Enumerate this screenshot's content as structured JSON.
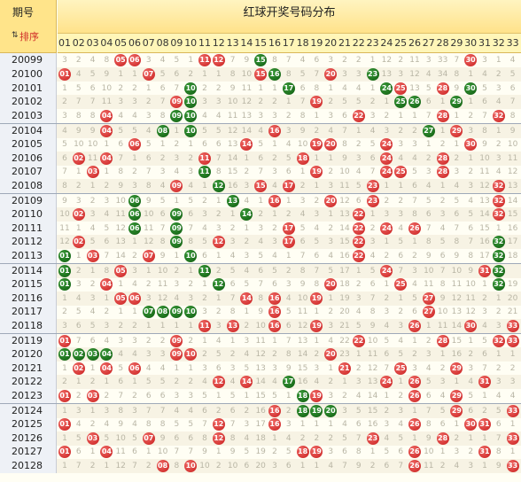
{
  "header": {
    "period_label": "期号",
    "sort_label": "排序",
    "sort_icon": "⇅",
    "title": "红球开奖号码分布"
  },
  "numbers": [
    "01",
    "02",
    "03",
    "04",
    "05",
    "06",
    "07",
    "08",
    "09",
    "10",
    "11",
    "12",
    "13",
    "14",
    "15",
    "16",
    "17",
    "18",
    "19",
    "20",
    "21",
    "22",
    "23",
    "24",
    "25",
    "26",
    "27",
    "28",
    "29",
    "30",
    "31",
    "32",
    "33"
  ],
  "colors": {
    "red_ball": "#c81e1e",
    "green_ball": "#0d5a0d",
    "header": "#ffe28a"
  },
  "rows": [
    {
      "period": "20099",
      "balls": [
        5,
        6,
        11,
        12,
        15,
        30
      ],
      "green": [
        15
      ],
      "cells": [
        "3",
        "2",
        "4",
        "8",
        "",
        "",
        "3",
        "4",
        "5",
        "1",
        "",
        "",
        "7",
        "9",
        "",
        "8",
        "7",
        "4",
        "6",
        "3",
        "2",
        "2",
        "1",
        "12",
        "2",
        "11",
        "3",
        "33",
        "7",
        "",
        "3",
        "1",
        "4"
      ]
    },
    {
      "period": "20100",
      "balls": [
        1,
        7,
        15,
        16,
        20,
        23
      ],
      "green": [
        16,
        23
      ],
      "cells": [
        "",
        "4",
        "5",
        "9",
        "1",
        "1",
        "",
        "5",
        "6",
        "2",
        "1",
        "1",
        "8",
        "10",
        "",
        "",
        "8",
        "5",
        "7",
        "",
        "3",
        "3",
        "",
        "13",
        "3",
        "12",
        "4",
        "34",
        "8",
        "1",
        "4",
        "2",
        "5"
      ]
    },
    {
      "period": "20101",
      "balls": [
        10,
        17,
        24,
        25,
        28,
        30
      ],
      "green": [
        10,
        17,
        24,
        30
      ],
      "cells": [
        "1",
        "5",
        "6",
        "10",
        "2",
        "2",
        "1",
        "6",
        "7",
        "",
        "2",
        "2",
        "9",
        "11",
        "1",
        "1",
        "",
        "6",
        "8",
        "1",
        "4",
        "4",
        "1",
        "",
        "",
        "13",
        "5",
        "",
        "9",
        "",
        "5",
        "3",
        "6"
      ]
    },
    {
      "period": "20102",
      "balls": [
        9,
        10,
        19,
        25,
        26,
        29
      ],
      "green": [
        10,
        25,
        26,
        29
      ],
      "cells": [
        "2",
        "7",
        "7",
        "11",
        "3",
        "3",
        "2",
        "7",
        "",
        "",
        "3",
        "3",
        "10",
        "12",
        "2",
        "2",
        "1",
        "7",
        "",
        "2",
        "5",
        "5",
        "2",
        "1",
        "",
        "",
        "6",
        "1",
        "",
        "1",
        "6",
        "4",
        "7"
      ]
    },
    {
      "period": "20103",
      "balls": [
        4,
        9,
        10,
        22,
        28,
        32
      ],
      "green": [
        9,
        10
      ],
      "cells": [
        "3",
        "8",
        "8",
        "",
        "4",
        "4",
        "3",
        "8",
        "",
        "",
        "4",
        "4",
        "11",
        "13",
        "3",
        "3",
        "2",
        "8",
        "1",
        "3",
        "6",
        "",
        "3",
        "2",
        "1",
        "1",
        "7",
        "",
        "1",
        "2",
        "7",
        "",
        "8"
      ]
    },
    {
      "period": "20104",
      "balls": [
        4,
        8,
        10,
        16,
        27,
        29
      ],
      "green": [
        8,
        10,
        27
      ],
      "cells": [
        "4",
        "9",
        "9",
        "",
        "5",
        "5",
        "4",
        "",
        "1",
        "",
        "5",
        "5",
        "12",
        "14",
        "4",
        "",
        "3",
        "9",
        "2",
        "4",
        "7",
        "1",
        "4",
        "3",
        "2",
        "2",
        "",
        "1",
        "",
        "3",
        "8",
        "1",
        "9"
      ]
    },
    {
      "period": "20105",
      "balls": [
        6,
        14,
        19,
        20,
        24,
        30
      ],
      "green": [],
      "cells": [
        "5",
        "10",
        "10",
        "1",
        "6",
        "",
        "5",
        "1",
        "2",
        "1",
        "6",
        "6",
        "13",
        "",
        "5",
        "1",
        "4",
        "10",
        "",
        "",
        "8",
        "2",
        "5",
        "",
        "3",
        "3",
        "1",
        "2",
        "1",
        "",
        "9",
        "2",
        "10"
      ]
    },
    {
      "period": "20106",
      "balls": [
        2,
        4,
        11,
        18,
        24,
        28
      ],
      "green": [],
      "cells": [
        "6",
        "",
        "11",
        "",
        "7",
        "1",
        "6",
        "2",
        "3",
        "2",
        "",
        "7",
        "14",
        "1",
        "6",
        "2",
        "5",
        "",
        "1",
        "1",
        "9",
        "3",
        "6",
        "",
        "4",
        "4",
        "2",
        "",
        "2",
        "1",
        "10",
        "3",
        "11"
      ]
    },
    {
      "period": "20107",
      "balls": [
        3,
        11,
        19,
        24,
        25,
        28
      ],
      "green": [
        11
      ],
      "cells": [
        "7",
        "1",
        "",
        "1",
        "8",
        "2",
        "7",
        "3",
        "4",
        "3",
        "",
        "8",
        "15",
        "2",
        "7",
        "3",
        "6",
        "1",
        "",
        "2",
        "10",
        "4",
        "7",
        "",
        "",
        "5",
        "3",
        "",
        "3",
        "2",
        "11",
        "4",
        "12"
      ]
    },
    {
      "period": "20108",
      "balls": [
        9,
        12,
        15,
        17,
        23,
        32
      ],
      "green": [
        12
      ],
      "cells": [
        "8",
        "2",
        "1",
        "2",
        "9",
        "3",
        "8",
        "4",
        "",
        "4",
        "1",
        "",
        "16",
        "3",
        "",
        "4",
        "",
        "2",
        "1",
        "3",
        "11",
        "5",
        "",
        "1",
        "1",
        "6",
        "4",
        "1",
        "4",
        "3",
        "12",
        "",
        "13"
      ]
    },
    {
      "period": "20109",
      "balls": [
        6,
        13,
        16,
        20,
        23,
        32
      ],
      "green": [
        6,
        13
      ],
      "cells": [
        "9",
        "3",
        "2",
        "3",
        "10",
        "",
        "9",
        "5",
        "1",
        "5",
        "2",
        "1",
        "",
        "4",
        "1",
        "",
        "1",
        "3",
        "2",
        "",
        "12",
        "6",
        "",
        "2",
        "2",
        "7",
        "5",
        "2",
        "5",
        "4",
        "13",
        "",
        "14"
      ]
    },
    {
      "period": "20110",
      "balls": [
        2,
        6,
        9,
        14,
        22,
        32
      ],
      "green": [
        6,
        9,
        14
      ],
      "cells": [
        "10",
        "",
        "3",
        "4",
        "11",
        "",
        "10",
        "6",
        "",
        "6",
        "3",
        "2",
        "1",
        "",
        "2",
        "1",
        "2",
        "4",
        "3",
        "1",
        "13",
        "",
        "1",
        "3",
        "3",
        "8",
        "6",
        "3",
        "6",
        "5",
        "14",
        "",
        "15"
      ]
    },
    {
      "period": "20111",
      "balls": [
        6,
        9,
        17,
        22,
        24,
        26
      ],
      "green": [
        6,
        9
      ],
      "cells": [
        "11",
        "1",
        "4",
        "5",
        "12",
        "",
        "11",
        "7",
        "",
        "7",
        "4",
        "3",
        "2",
        "1",
        "3",
        "2",
        "",
        "5",
        "4",
        "2",
        "14",
        "",
        "2",
        "",
        "4",
        "",
        "7",
        "4",
        "7",
        "6",
        "15",
        "1",
        "16"
      ]
    },
    {
      "period": "20112",
      "balls": [
        2,
        9,
        12,
        17,
        22,
        32
      ],
      "green": [
        9,
        32
      ],
      "cells": [
        "12",
        "",
        "5",
        "6",
        "13",
        "1",
        "12",
        "8",
        "",
        "8",
        "5",
        "",
        "3",
        "2",
        "4",
        "3",
        "",
        "6",
        "5",
        "3",
        "15",
        "",
        "3",
        "1",
        "5",
        "1",
        "8",
        "5",
        "8",
        "7",
        "16",
        "",
        "17"
      ]
    },
    {
      "period": "20113",
      "balls": [
        1,
        3,
        7,
        10,
        22,
        32
      ],
      "green": [
        1,
        10,
        32
      ],
      "cells": [
        "",
        "1",
        "",
        "7",
        "14",
        "2",
        "",
        "9",
        "1",
        "",
        "6",
        "1",
        "4",
        "3",
        "5",
        "4",
        "1",
        "7",
        "6",
        "4",
        "16",
        "",
        "4",
        "2",
        "6",
        "2",
        "9",
        "6",
        "9",
        "8",
        "17",
        "",
        "18"
      ]
    },
    {
      "period": "20114",
      "balls": [
        1,
        5,
        11,
        24,
        31,
        32
      ],
      "green": [
        1,
        11,
        32
      ],
      "cells": [
        "",
        "2",
        "1",
        "8",
        "",
        "3",
        "1",
        "10",
        "2",
        "1",
        "",
        "2",
        "5",
        "4",
        "6",
        "5",
        "2",
        "8",
        "7",
        "5",
        "17",
        "1",
        "5",
        "",
        "7",
        "3",
        "10",
        "7",
        "10",
        "9",
        "",
        "",
        ""
      ]
    },
    {
      "period": "20115",
      "balls": [
        1,
        4,
        12,
        20,
        25,
        32
      ],
      "green": [
        1,
        12,
        32
      ],
      "cells": [
        "",
        "3",
        "2",
        "",
        "1",
        "4",
        "2",
        "11",
        "3",
        "2",
        "1",
        "",
        "6",
        "5",
        "7",
        "6",
        "3",
        "9",
        "8",
        "",
        "18",
        "2",
        "6",
        "1",
        "",
        "4",
        "11",
        "8",
        "11",
        "10",
        "1",
        "",
        "19"
      ]
    },
    {
      "period": "20116",
      "balls": [
        5,
        6,
        14,
        16,
        19,
        27
      ],
      "green": [],
      "cells": [
        "1",
        "4",
        "3",
        "1",
        "",
        "",
        "3",
        "12",
        "4",
        "3",
        "2",
        "1",
        "7",
        "",
        "8",
        "",
        "4",
        "10",
        "",
        "1",
        "19",
        "3",
        "7",
        "2",
        "1",
        "5",
        "",
        "9",
        "12",
        "11",
        "2",
        "1",
        "20"
      ]
    },
    {
      "period": "20117",
      "balls": [
        7,
        8,
        9,
        10,
        16,
        27
      ],
      "green": [
        7,
        8,
        9,
        10
      ],
      "cells": [
        "2",
        "5",
        "4",
        "2",
        "1",
        "1",
        "",
        "",
        "",
        "",
        "3",
        "2",
        "8",
        "1",
        "9",
        "",
        "5",
        "11",
        "1",
        "2",
        "20",
        "4",
        "8",
        "3",
        "2",
        "6",
        "",
        "10",
        "13",
        "12",
        "3",
        "2",
        "21"
      ]
    },
    {
      "period": "20118",
      "balls": [
        11,
        13,
        16,
        19,
        26,
        30,
        33
      ],
      "green": [],
      "cells": [
        "3",
        "6",
        "5",
        "3",
        "2",
        "2",
        "1",
        "1",
        "1",
        "1",
        "",
        "3",
        "",
        "2",
        "10",
        "",
        "6",
        "12",
        "",
        "3",
        "21",
        "5",
        "9",
        "4",
        "3",
        "",
        "1",
        "11",
        "14",
        "",
        "4",
        "3",
        ""
      ]
    },
    {
      "period": "20119",
      "balls": [
        1,
        9,
        22,
        28,
        32,
        33
      ],
      "green": [],
      "cells": [
        "",
        "7",
        "6",
        "4",
        "3",
        "3",
        "2",
        "2",
        "",
        "2",
        "1",
        "4",
        "1",
        "3",
        "11",
        "1",
        "7",
        "13",
        "1",
        "4",
        "22",
        "",
        "10",
        "5",
        "4",
        "1",
        "2",
        "",
        "15",
        "1",
        "5",
        "",
        ""
      ]
    },
    {
      "period": "20120",
      "balls": [
        1,
        2,
        3,
        4,
        9,
        10,
        20
      ],
      "green": [
        1,
        2,
        3,
        4
      ],
      "cells": [
        "",
        "",
        "",
        "",
        "4",
        "4",
        "3",
        "3",
        "",
        "",
        "2",
        "5",
        "2",
        "4",
        "12",
        "2",
        "8",
        "14",
        "2",
        "",
        "23",
        "1",
        "11",
        "6",
        "5",
        "2",
        "3",
        "1",
        "16",
        "2",
        "6",
        "1",
        "1"
      ]
    },
    {
      "period": "20121",
      "balls": [
        2,
        4,
        6,
        21,
        25,
        29
      ],
      "green": [],
      "cells": [
        "1",
        "",
        "1",
        "",
        "5",
        "",
        "4",
        "4",
        "1",
        "1",
        "3",
        "6",
        "3",
        "5",
        "13",
        "3",
        "9",
        "15",
        "3",
        "1",
        "",
        "2",
        "12",
        "7",
        "",
        "3",
        "4",
        "2",
        "",
        "3",
        "7",
        "2",
        "2"
      ]
    },
    {
      "period": "20122",
      "balls": [
        12,
        14,
        17,
        24,
        26,
        31
      ],
      "green": [
        17
      ],
      "cells": [
        "2",
        "1",
        "2",
        "1",
        "6",
        "1",
        "5",
        "5",
        "2",
        "2",
        "4",
        "",
        "4",
        "",
        "14",
        "4",
        "",
        "16",
        "4",
        "2",
        "1",
        "3",
        "13",
        "",
        "1",
        "",
        "5",
        "3",
        "1",
        "4",
        "",
        "3",
        "3"
      ]
    },
    {
      "period": "20123",
      "balls": [
        1,
        3,
        18,
        19,
        26,
        29
      ],
      "green": [
        18
      ],
      "cells": [
        "",
        "2",
        "",
        "2",
        "7",
        "2",
        "6",
        "6",
        "3",
        "3",
        "5",
        "1",
        "5",
        "1",
        "15",
        "5",
        "1",
        "",
        "",
        "3",
        "2",
        "4",
        "14",
        "1",
        "2",
        "",
        "6",
        "4",
        "",
        "5",
        "1",
        "4",
        "4"
      ]
    },
    {
      "period": "20124",
      "balls": [
        16,
        18,
        19,
        20,
        29,
        33
      ],
      "green": [
        18,
        19,
        20
      ],
      "cells": [
        "1",
        "3",
        "1",
        "3",
        "8",
        "3",
        "7",
        "7",
        "4",
        "4",
        "6",
        "2",
        "6",
        "2",
        "16",
        "",
        "2",
        "",
        "",
        "",
        "3",
        "5",
        "15",
        "2",
        "3",
        "1",
        "7",
        "5",
        "",
        "6",
        "2",
        "5",
        ""
      ]
    },
    {
      "period": "20125",
      "balls": [
        1,
        12,
        16,
        26,
        30,
        31
      ],
      "green": [],
      "cells": [
        "",
        "4",
        "2",
        "4",
        "9",
        "4",
        "8",
        "8",
        "5",
        "5",
        "7",
        "",
        "7",
        "3",
        "17",
        "",
        "3",
        "1",
        "1",
        "1",
        "4",
        "6",
        "16",
        "3",
        "4",
        "",
        "8",
        "6",
        "1",
        "",
        "",
        "6",
        "1"
      ]
    },
    {
      "period": "20126",
      "balls": [
        3,
        7,
        12,
        23,
        28,
        33
      ],
      "green": [],
      "cells": [
        "1",
        "5",
        "",
        "5",
        "10",
        "5",
        "",
        "9",
        "6",
        "6",
        "8",
        "",
        "8",
        "4",
        "18",
        "1",
        "4",
        "2",
        "2",
        "2",
        "5",
        "7",
        "",
        "4",
        "5",
        "1",
        "9",
        "",
        "2",
        "1",
        "1",
        "7",
        ""
      ]
    },
    {
      "period": "20127",
      "balls": [
        1,
        4,
        18,
        19,
        26,
        31
      ],
      "green": [],
      "cells": [
        "",
        "6",
        "1",
        "",
        "11",
        "6",
        "1",
        "10",
        "7",
        "7",
        "9",
        "1",
        "9",
        "5",
        "19",
        "2",
        "5",
        "",
        "",
        "3",
        "6",
        "8",
        "1",
        "5",
        "6",
        "",
        "10",
        "1",
        "3",
        "2",
        "",
        "8",
        "1"
      ]
    },
    {
      "period": "20128",
      "balls": [
        8,
        10,
        26,
        33
      ],
      "green": [],
      "cells": [
        "1",
        "7",
        "2",
        "1",
        "12",
        "7",
        "2",
        "",
        "8",
        "",
        "10",
        "2",
        "10",
        "6",
        "20",
        "3",
        "6",
        "1",
        "1",
        "4",
        "7",
        "9",
        "2",
        "6",
        "7",
        "",
        "11",
        "2",
        "4",
        "3",
        "1",
        "9",
        ""
      ]
    }
  ]
}
